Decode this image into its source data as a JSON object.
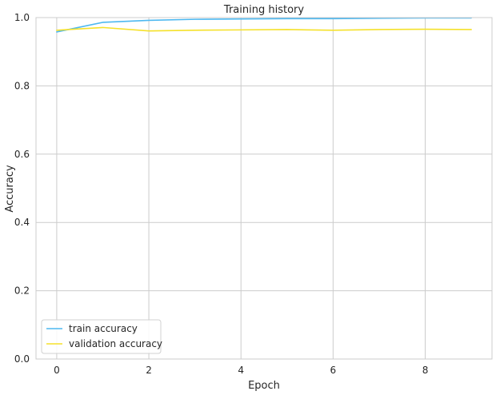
{
  "chart_data": {
    "type": "line",
    "title": "Training history",
    "xlabel": "Epoch",
    "ylabel": "Accuracy",
    "xlim": [
      -0.45,
      9.45
    ],
    "ylim": [
      0.0,
      1.0
    ],
    "xticks": [
      0,
      2,
      4,
      6,
      8
    ],
    "xtick_labels": [
      "0",
      "2",
      "4",
      "6",
      "8"
    ],
    "yticks": [
      0.0,
      0.2,
      0.4,
      0.6,
      0.8,
      1.0
    ],
    "ytick_labels": [
      "0.0",
      "0.2",
      "0.4",
      "0.6",
      "0.8",
      "1.0"
    ],
    "grid": true,
    "legend_position": "bottom-left",
    "x": [
      0,
      1,
      2,
      3,
      4,
      5,
      6,
      7,
      8,
      9
    ],
    "series": [
      {
        "name": "train accuracy",
        "color": "#4db8f0",
        "values": [
          0.958,
          0.986,
          0.992,
          0.995,
          0.996,
          0.997,
          0.997,
          0.998,
          0.999,
          0.999
        ]
      },
      {
        "name": "validation accuracy",
        "color": "#f5e12a",
        "values": [
          0.963,
          0.971,
          0.961,
          0.963,
          0.964,
          0.965,
          0.963,
          0.965,
          0.966,
          0.965
        ]
      }
    ]
  }
}
